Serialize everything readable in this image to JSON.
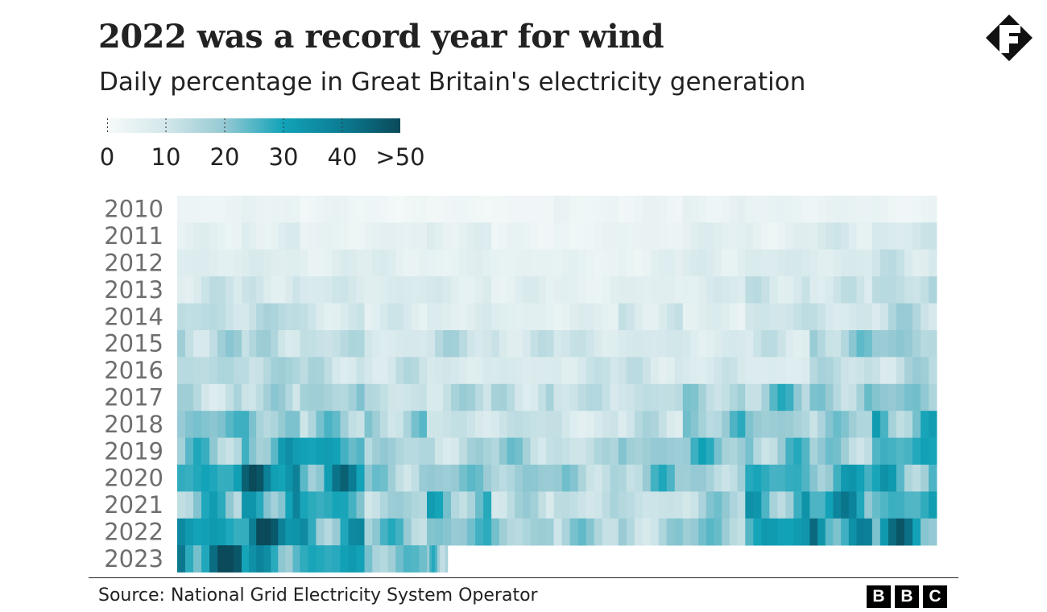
{
  "chart_data": {
    "type": "heatmap",
    "title": "2022 was a record year for wind",
    "subtitle": "Daily percentage in Great Britain's electricity generation",
    "legend": {
      "ticks": [
        "0",
        "10",
        "20",
        "30",
        "40",
        ">50"
      ],
      "range": [
        0,
        50
      ],
      "colors": {
        "0": "#f7fafa",
        "10": "#d3e7ea",
        "20": "#95c9d3",
        "30": "#12a3b8",
        "40": "#0b7c93",
        "50": "#0a4a5a"
      },
      "placement": "top-left"
    },
    "x_resolution_note_visible": false,
    "rows": [
      {
        "year": "2010",
        "monthly_values": [
          3,
          4,
          3,
          2,
          2,
          2,
          3,
          3,
          4,
          4,
          4,
          3
        ]
      },
      {
        "year": "2011",
        "monthly_values": [
          5,
          6,
          4,
          5,
          6,
          3,
          3,
          4,
          6,
          5,
          8,
          9
        ]
      },
      {
        "year": "2012",
        "monthly_values": [
          7,
          7,
          6,
          6,
          5,
          5,
          4,
          5,
          7,
          8,
          8,
          10
        ]
      },
      {
        "year": "2013",
        "monthly_values": [
          10,
          9,
          9,
          8,
          7,
          6,
          5,
          6,
          8,
          10,
          10,
          14
        ]
      },
      {
        "year": "2014",
        "monthly_values": [
          13,
          14,
          9,
          8,
          7,
          6,
          6,
          9,
          6,
          11,
          10,
          14
        ]
      },
      {
        "year": "2015",
        "monthly_values": [
          15,
          14,
          13,
          9,
          13,
          10,
          10,
          9,
          8,
          10,
          17,
          19
        ]
      },
      {
        "year": "2016",
        "monthly_values": [
          14,
          16,
          12,
          11,
          9,
          8,
          10,
          10,
          9,
          8,
          13,
          14
        ]
      },
      {
        "year": "2017",
        "monthly_values": [
          13,
          15,
          18,
          12,
          14,
          13,
          12,
          13,
          16,
          20,
          18,
          20
        ]
      },
      {
        "year": "2018",
        "monthly_values": [
          22,
          20,
          18,
          17,
          11,
          12,
          9,
          12,
          20,
          19,
          18,
          23
        ]
      },
      {
        "year": "2019",
        "monthly_values": [
          20,
          25,
          30,
          16,
          14,
          17,
          13,
          20,
          22,
          20,
          18,
          26
        ]
      },
      {
        "year": "2020",
        "monthly_values": [
          30,
          38,
          32,
          18,
          20,
          19,
          16,
          20,
          17,
          26,
          27,
          24
        ]
      },
      {
        "year": "2021",
        "monthly_values": [
          22,
          28,
          27,
          16,
          22,
          14,
          13,
          12,
          17,
          25,
          31,
          27
        ]
      },
      {
        "year": "2022",
        "monthly_values": [
          32,
          40,
          27,
          21,
          22,
          18,
          17,
          15,
          20,
          30,
          33,
          33
        ]
      },
      {
        "year": "2023",
        "monthly_values": [
          40,
          30,
          28,
          22,
          20
        ]
      }
    ]
  },
  "footer": {
    "source": "Source: National Grid Electricity System Operator",
    "brand": [
      "B",
      "B",
      "C"
    ]
  }
}
